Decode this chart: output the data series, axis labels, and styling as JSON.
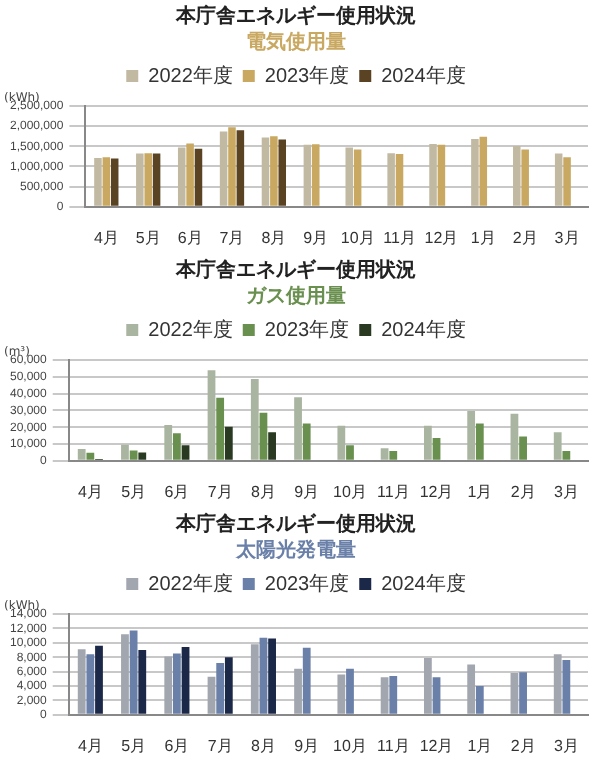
{
  "chart_data": [
    {
      "type": "bar",
      "title": "本庁舎エネルギー使用状況",
      "subtitle": "電気使用量",
      "ylabel": "(kWh)",
      "categories": [
        "4月",
        "5月",
        "6月",
        "7月",
        "8月",
        "9月",
        "10月",
        "11月",
        "12月",
        "1月",
        "2月",
        "3月"
      ],
      "series": [
        {
          "name": "2022年度",
          "color": "#c2b9a2",
          "values": [
            1210000,
            1320000,
            1470000,
            1870000,
            1720000,
            1540000,
            1470000,
            1330000,
            1560000,
            1680000,
            1510000,
            1320000
          ]
        },
        {
          "name": "2023年度",
          "color": "#c9a862",
          "values": [
            1230000,
            1330000,
            1570000,
            1970000,
            1750000,
            1550000,
            1420000,
            1310000,
            1540000,
            1740000,
            1420000,
            1230000
          ]
        },
        {
          "name": "2024年度",
          "color": "#5a4322",
          "values": [
            1200000,
            1320000,
            1440000,
            1900000,
            1670000,
            null,
            null,
            null,
            null,
            null,
            null,
            null
          ]
        }
      ],
      "ylim": [
        0,
        2500000
      ],
      "yticks": [
        {
          "value": 0,
          "label": "0"
        },
        {
          "value": 500000,
          "label": "500,000"
        },
        {
          "value": 1000000,
          "label": "1,000,000"
        },
        {
          "value": 1500000,
          "label": "1,500,000"
        },
        {
          "value": 2000000,
          "label": "2,000,000"
        },
        {
          "value": 2500000,
          "label": "2,500,000"
        }
      ],
      "grid": "y",
      "legend": "top"
    },
    {
      "type": "bar",
      "title": "本庁舎エネルギー使用状況",
      "subtitle": "ガス使用量",
      "ylabel": "(m³)",
      "categories": [
        "4月",
        "5月",
        "6月",
        "7月",
        "8月",
        "9月",
        "10月",
        "11月",
        "12月",
        "1月",
        "2月",
        "3月"
      ],
      "series": [
        {
          "name": "2022年度",
          "color": "#a9b5a1",
          "values": [
            7000,
            9500,
            21300,
            53900,
            48700,
            37800,
            20800,
            7500,
            20800,
            29700,
            28000,
            17000
          ]
        },
        {
          "name": "2023年度",
          "color": "#6a9050",
          "values": [
            4800,
            6100,
            16400,
            37500,
            28600,
            22200,
            9200,
            5800,
            13600,
            22200,
            14400,
            5800
          ]
        },
        {
          "name": "2024年度",
          "color": "#2a3a22",
          "values": [
            1100,
            4900,
            9200,
            20200,
            17000,
            null,
            null,
            null,
            null,
            null,
            null,
            null
          ]
        }
      ],
      "ylim": [
        0,
        60000
      ],
      "yticks": [
        {
          "value": 0,
          "label": "0"
        },
        {
          "value": 10000,
          "label": "10,000"
        },
        {
          "value": 20000,
          "label": "20,000"
        },
        {
          "value": 30000,
          "label": "30,000"
        },
        {
          "value": 40000,
          "label": "40,000"
        },
        {
          "value": 50000,
          "label": "50,000"
        },
        {
          "value": 60000,
          "label": "60,000"
        }
      ],
      "grid": "y",
      "legend": "top"
    },
    {
      "type": "bar",
      "title": "本庁舎エネルギー使用状況",
      "subtitle": "太陽光発電量",
      "ylabel": "(kWh)",
      "categories": [
        "4月",
        "5月",
        "6月",
        "7月",
        "8月",
        "9月",
        "10月",
        "11月",
        "12月",
        "1月",
        "2月",
        "3月"
      ],
      "series": [
        {
          "name": "2022年度",
          "color": "#a2a6ae",
          "values": [
            9100,
            11200,
            8100,
            5300,
            9800,
            6400,
            5600,
            5200,
            7900,
            7000,
            5800,
            8400
          ]
        },
        {
          "name": "2023年度",
          "color": "#6a80a8",
          "values": [
            8400,
            11700,
            8500,
            7200,
            10700,
            9300,
            6400,
            5400,
            5200,
            4000,
            5900,
            7600
          ]
        },
        {
          "name": "2024年度",
          "color": "#1c2848",
          "values": [
            9600,
            9000,
            9400,
            8000,
            10600,
            null,
            null,
            null,
            null,
            null,
            null,
            null
          ]
        }
      ],
      "ylim": [
        0,
        14000
      ],
      "yticks": [
        {
          "value": 0,
          "label": "0"
        },
        {
          "value": 2000,
          "label": "2,000"
        },
        {
          "value": 4000,
          "label": "4,000"
        },
        {
          "value": 6000,
          "label": "6,000"
        },
        {
          "value": 8000,
          "label": "8,000"
        },
        {
          "value": 10000,
          "label": "10,000"
        },
        {
          "value": 12000,
          "label": "12,000"
        },
        {
          "value": 14000,
          "label": "14,000"
        }
      ],
      "grid": "y",
      "legend": "top"
    }
  ]
}
